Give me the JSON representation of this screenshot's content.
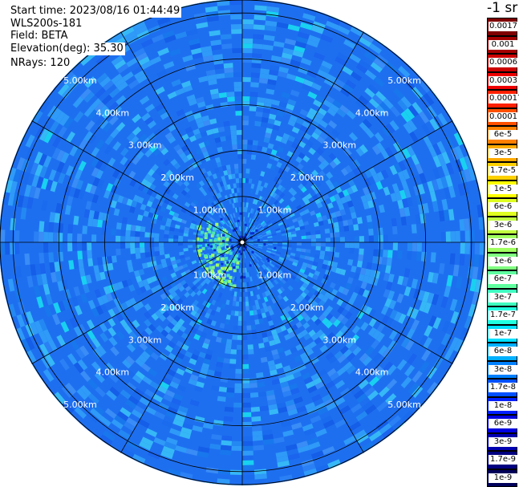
{
  "info": {
    "start_time": "Start time: 2023/08/16 01:44:49",
    "instrument": "WLS200s-181",
    "field": "Field: BETA",
    "elevation": "Elevation(deg): 35.30",
    "nrays": "NRays: 120"
  },
  "colorbar": {
    "title": "-1 sr",
    "labels": [
      "0.0017",
      "0.001",
      "0.0006",
      "0.0003",
      "0.00017",
      "0.0001",
      "6e-5",
      "3e-5",
      "1.7e-5",
      "1e-5",
      "6e-6",
      "3e-6",
      "1.7e-6",
      "1e-6",
      "6e-7",
      "3e-7",
      "1.7e-7",
      "1e-7",
      "6e-8",
      "3e-8",
      "1.7e-8",
      "1e-8",
      "6e-9",
      "3e-9",
      "1.7e-9",
      "1e-9"
    ],
    "colors": [
      "#7f0000",
      "#a50000",
      "#cc0000",
      "#ee0000",
      "#ff2000",
      "#ff5000",
      "#ff8000",
      "#ffaa00",
      "#ffd000",
      "#ffff00",
      "#e0ff20",
      "#c0ff40",
      "#a0ff60",
      "#80ff80",
      "#60ffa0",
      "#40ffc0",
      "#20ffe0",
      "#00e0ff",
      "#00b0ff",
      "#0080ff",
      "#0050ff",
      "#0020ff",
      "#0000e0",
      "#0000b0",
      "#000080",
      "#00005a"
    ]
  },
  "ring_labels": [
    "1.00km",
    "2.00km",
    "3.00km",
    "4.00km",
    "5.00km"
  ],
  "chart_data": {
    "type": "polar-ppi",
    "field": "BETA",
    "units": "-1 sr",
    "range_rings_km": [
      1,
      2,
      3,
      4,
      5
    ],
    "max_range_km": 5.3,
    "spokes_deg": 30,
    "rays": 120,
    "dominant_value": "1.7e-8",
    "near_center_enhanced_value": "1.7e-6"
  }
}
